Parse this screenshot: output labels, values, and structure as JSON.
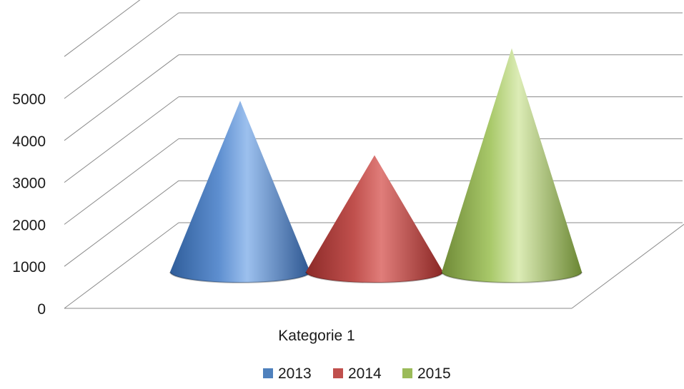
{
  "chart_data": {
    "type": "bar",
    "subtype": "3d-cone",
    "categories": [
      "Kategorie 1"
    ],
    "series": [
      {
        "name": "2013",
        "values": [
          3850
        ],
        "color": "#4f81bd"
      },
      {
        "name": "2014",
        "values": [
          2450
        ],
        "color": "#c0504d"
      },
      {
        "name": "2015",
        "values": [
          5200
        ],
        "color": "#9bbb59"
      }
    ],
    "yticks": [
      "0",
      "1000",
      "2000",
      "3000",
      "4000",
      "5000"
    ],
    "ylim": [
      0,
      6000
    ],
    "grid": true,
    "legend_position": "bottom"
  }
}
